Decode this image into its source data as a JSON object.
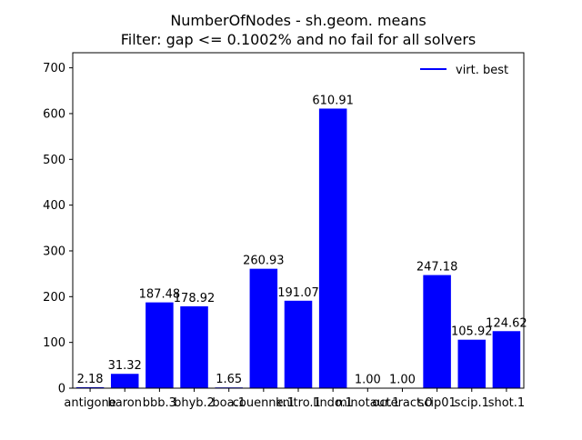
{
  "chart_data": {
    "type": "bar",
    "title": "NumberOfNodes - sh.geom. means",
    "subtitle": "Filter: gap <= 0.1002% and no fail for all solvers",
    "xlabel": "",
    "ylabel": "",
    "ylim": [
      0,
      733
    ],
    "yticks": [
      0,
      100,
      200,
      300,
      400,
      500,
      600,
      700
    ],
    "grid": false,
    "legend_position": "top-right",
    "categories": [
      "antigone",
      "baron",
      "bbb.3",
      "bhyb.2",
      "boa.1",
      "couenne.1",
      "knitro.1",
      "lindo.1",
      "minotaur.1",
      "octeract.0",
      "scip01",
      "scip.1",
      "shot.1"
    ],
    "series": [
      {
        "name": "virt. best",
        "color": "#0000ff",
        "values": [
          2.18,
          31.32,
          187.48,
          178.92,
          1.65,
          260.93,
          191.07,
          610.91,
          1.0,
          1.0,
          247.18,
          105.92,
          124.62
        ],
        "labels": [
          "2.18",
          "31.32",
          "187.48",
          "178.92",
          "1.65",
          "260.93",
          "191.07",
          "610.91",
          "1.00",
          "1.00",
          "247.18",
          "105.92",
          "124.62"
        ]
      }
    ]
  }
}
